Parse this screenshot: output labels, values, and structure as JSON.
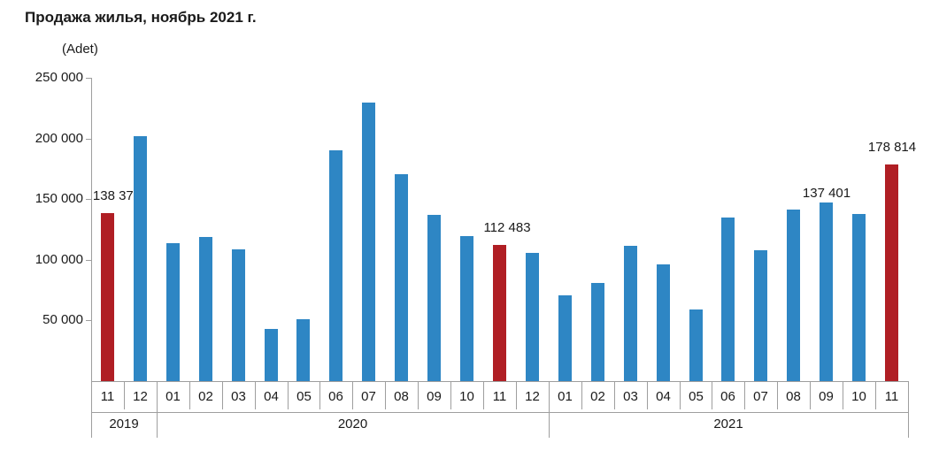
{
  "title": "Продажа жилья, ноябрь 2021 г.",
  "unit_label": "(Adet)",
  "colors": {
    "bar": "#2E86C4",
    "bar_highlight": "#B01E24",
    "axis": "#9E9E9E",
    "text": "#1A1A1A"
  },
  "chart_data": {
    "type": "bar",
    "title": "Продажа жилья, ноябрь 2021 г.",
    "ylabel": "(Adet)",
    "xlabel": "",
    "ylim": [
      0,
      250000
    ],
    "grid": false,
    "legend": false,
    "yticks": [
      {
        "value": 250000,
        "label": "250 000"
      },
      {
        "value": 200000,
        "label": "200 000"
      },
      {
        "value": 150000,
        "label": "150 000"
      },
      {
        "value": 100000,
        "label": "100 000"
      },
      {
        "value": 50000,
        "label": "50 000"
      }
    ],
    "groups": [
      {
        "year": "2019",
        "months": [
          "11",
          "12"
        ]
      },
      {
        "year": "2020",
        "months": [
          "01",
          "02",
          "03",
          "04",
          "05",
          "06",
          "07",
          "08",
          "09",
          "10",
          "11",
          "12"
        ]
      },
      {
        "year": "2021",
        "months": [
          "01",
          "02",
          "03",
          "04",
          "05",
          "06",
          "07",
          "08",
          "09",
          "10",
          "11"
        ]
      }
    ],
    "series": [
      {
        "name": "Продажа жилья (Adet)",
        "points": [
          {
            "year": "2019",
            "month": "11",
            "value": 138372,
            "highlight": true,
            "label": "138 372",
            "label_dx": 11,
            "label_gap": 11
          },
          {
            "year": "2019",
            "month": "12",
            "value": 202074,
            "highlight": false
          },
          {
            "year": "2020",
            "month": "01",
            "value": 113615,
            "highlight": false
          },
          {
            "year": "2020",
            "month": "02",
            "value": 118753,
            "highlight": false
          },
          {
            "year": "2020",
            "month": "03",
            "value": 108670,
            "highlight": false
          },
          {
            "year": "2020",
            "month": "04",
            "value": 42783,
            "highlight": false
          },
          {
            "year": "2020",
            "month": "05",
            "value": 50936,
            "highlight": false
          },
          {
            "year": "2020",
            "month": "06",
            "value": 190012,
            "highlight": false
          },
          {
            "year": "2020",
            "month": "07",
            "value": 229357,
            "highlight": false
          },
          {
            "year": "2020",
            "month": "08",
            "value": 170408,
            "highlight": false
          },
          {
            "year": "2020",
            "month": "09",
            "value": 136744,
            "highlight": false
          },
          {
            "year": "2020",
            "month": "10",
            "value": 119574,
            "highlight": false
          },
          {
            "year": "2020",
            "month": "11",
            "value": 112483,
            "highlight": true,
            "label": "112 483",
            "label_dx": 8,
            "label_gap": 11
          },
          {
            "year": "2020",
            "month": "12",
            "value": 105981,
            "highlight": false
          },
          {
            "year": "2021",
            "month": "01",
            "value": 70587,
            "highlight": false
          },
          {
            "year": "2021",
            "month": "02",
            "value": 81222,
            "highlight": false
          },
          {
            "year": "2021",
            "month": "03",
            "value": 111241,
            "highlight": false
          },
          {
            "year": "2021",
            "month": "04",
            "value": 95863,
            "highlight": false
          },
          {
            "year": "2021",
            "month": "05",
            "value": 59166,
            "highlight": false
          },
          {
            "year": "2021",
            "month": "06",
            "value": 134731,
            "highlight": false
          },
          {
            "year": "2021",
            "month": "07",
            "value": 107785,
            "highlight": false
          },
          {
            "year": "2021",
            "month": "08",
            "value": 141400,
            "highlight": false
          },
          {
            "year": "2021",
            "month": "09",
            "value": 147143,
            "highlight": false
          },
          {
            "year": "2021",
            "month": "10",
            "value": 137401,
            "highlight": false,
            "label": "137 401",
            "label_dx": -37,
            "label_gap": 15
          },
          {
            "year": "2021",
            "month": "11",
            "value": 178814,
            "highlight": true,
            "label": "178 814",
            "label_dx": 0,
            "label_gap": 11
          }
        ]
      }
    ]
  }
}
